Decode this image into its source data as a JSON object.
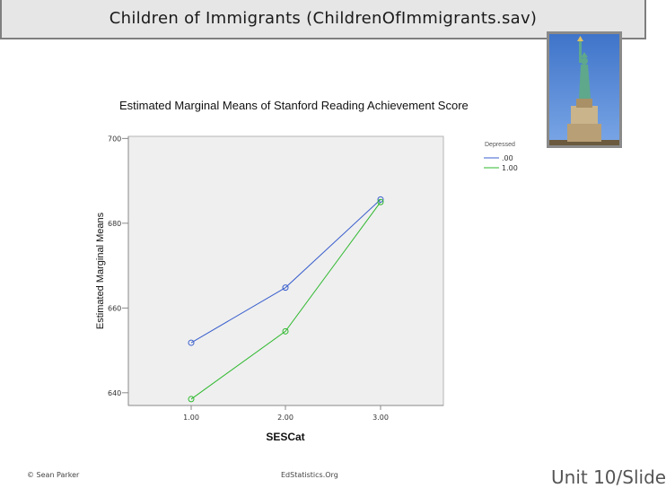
{
  "slide": {
    "title": "Children of Immigrants (ChildrenOfImmigrants.sav)",
    "footer_left": "© Sean Parker",
    "footer_center": "EdStatistics.Org",
    "footer_right": "Unit 10/Slide"
  },
  "photo": {
    "icon": "statue-of-liberty-icon"
  },
  "chart_data": {
    "type": "line",
    "title": "Estimated Marginal Means of Stanford Reading Achievement Score",
    "xlabel": "SESCat",
    "ylabel": "Estimated Marginal Means",
    "categories": [
      "1.00",
      "2.00",
      "3.00"
    ],
    "yticks": [
      "640",
      "660",
      "680",
      "700"
    ],
    "ylim": [
      637,
      700.5
    ],
    "legend": {
      "title": "Depressed",
      "placement": "right"
    },
    "series": [
      {
        "name": ".00",
        "color": "#3a5fcd",
        "values": [
          651.8,
          664.8,
          685.6
        ]
      },
      {
        "name": "1.00",
        "color": "#2db82d",
        "values": [
          638.5,
          654.5,
          685.0
        ]
      }
    ]
  }
}
